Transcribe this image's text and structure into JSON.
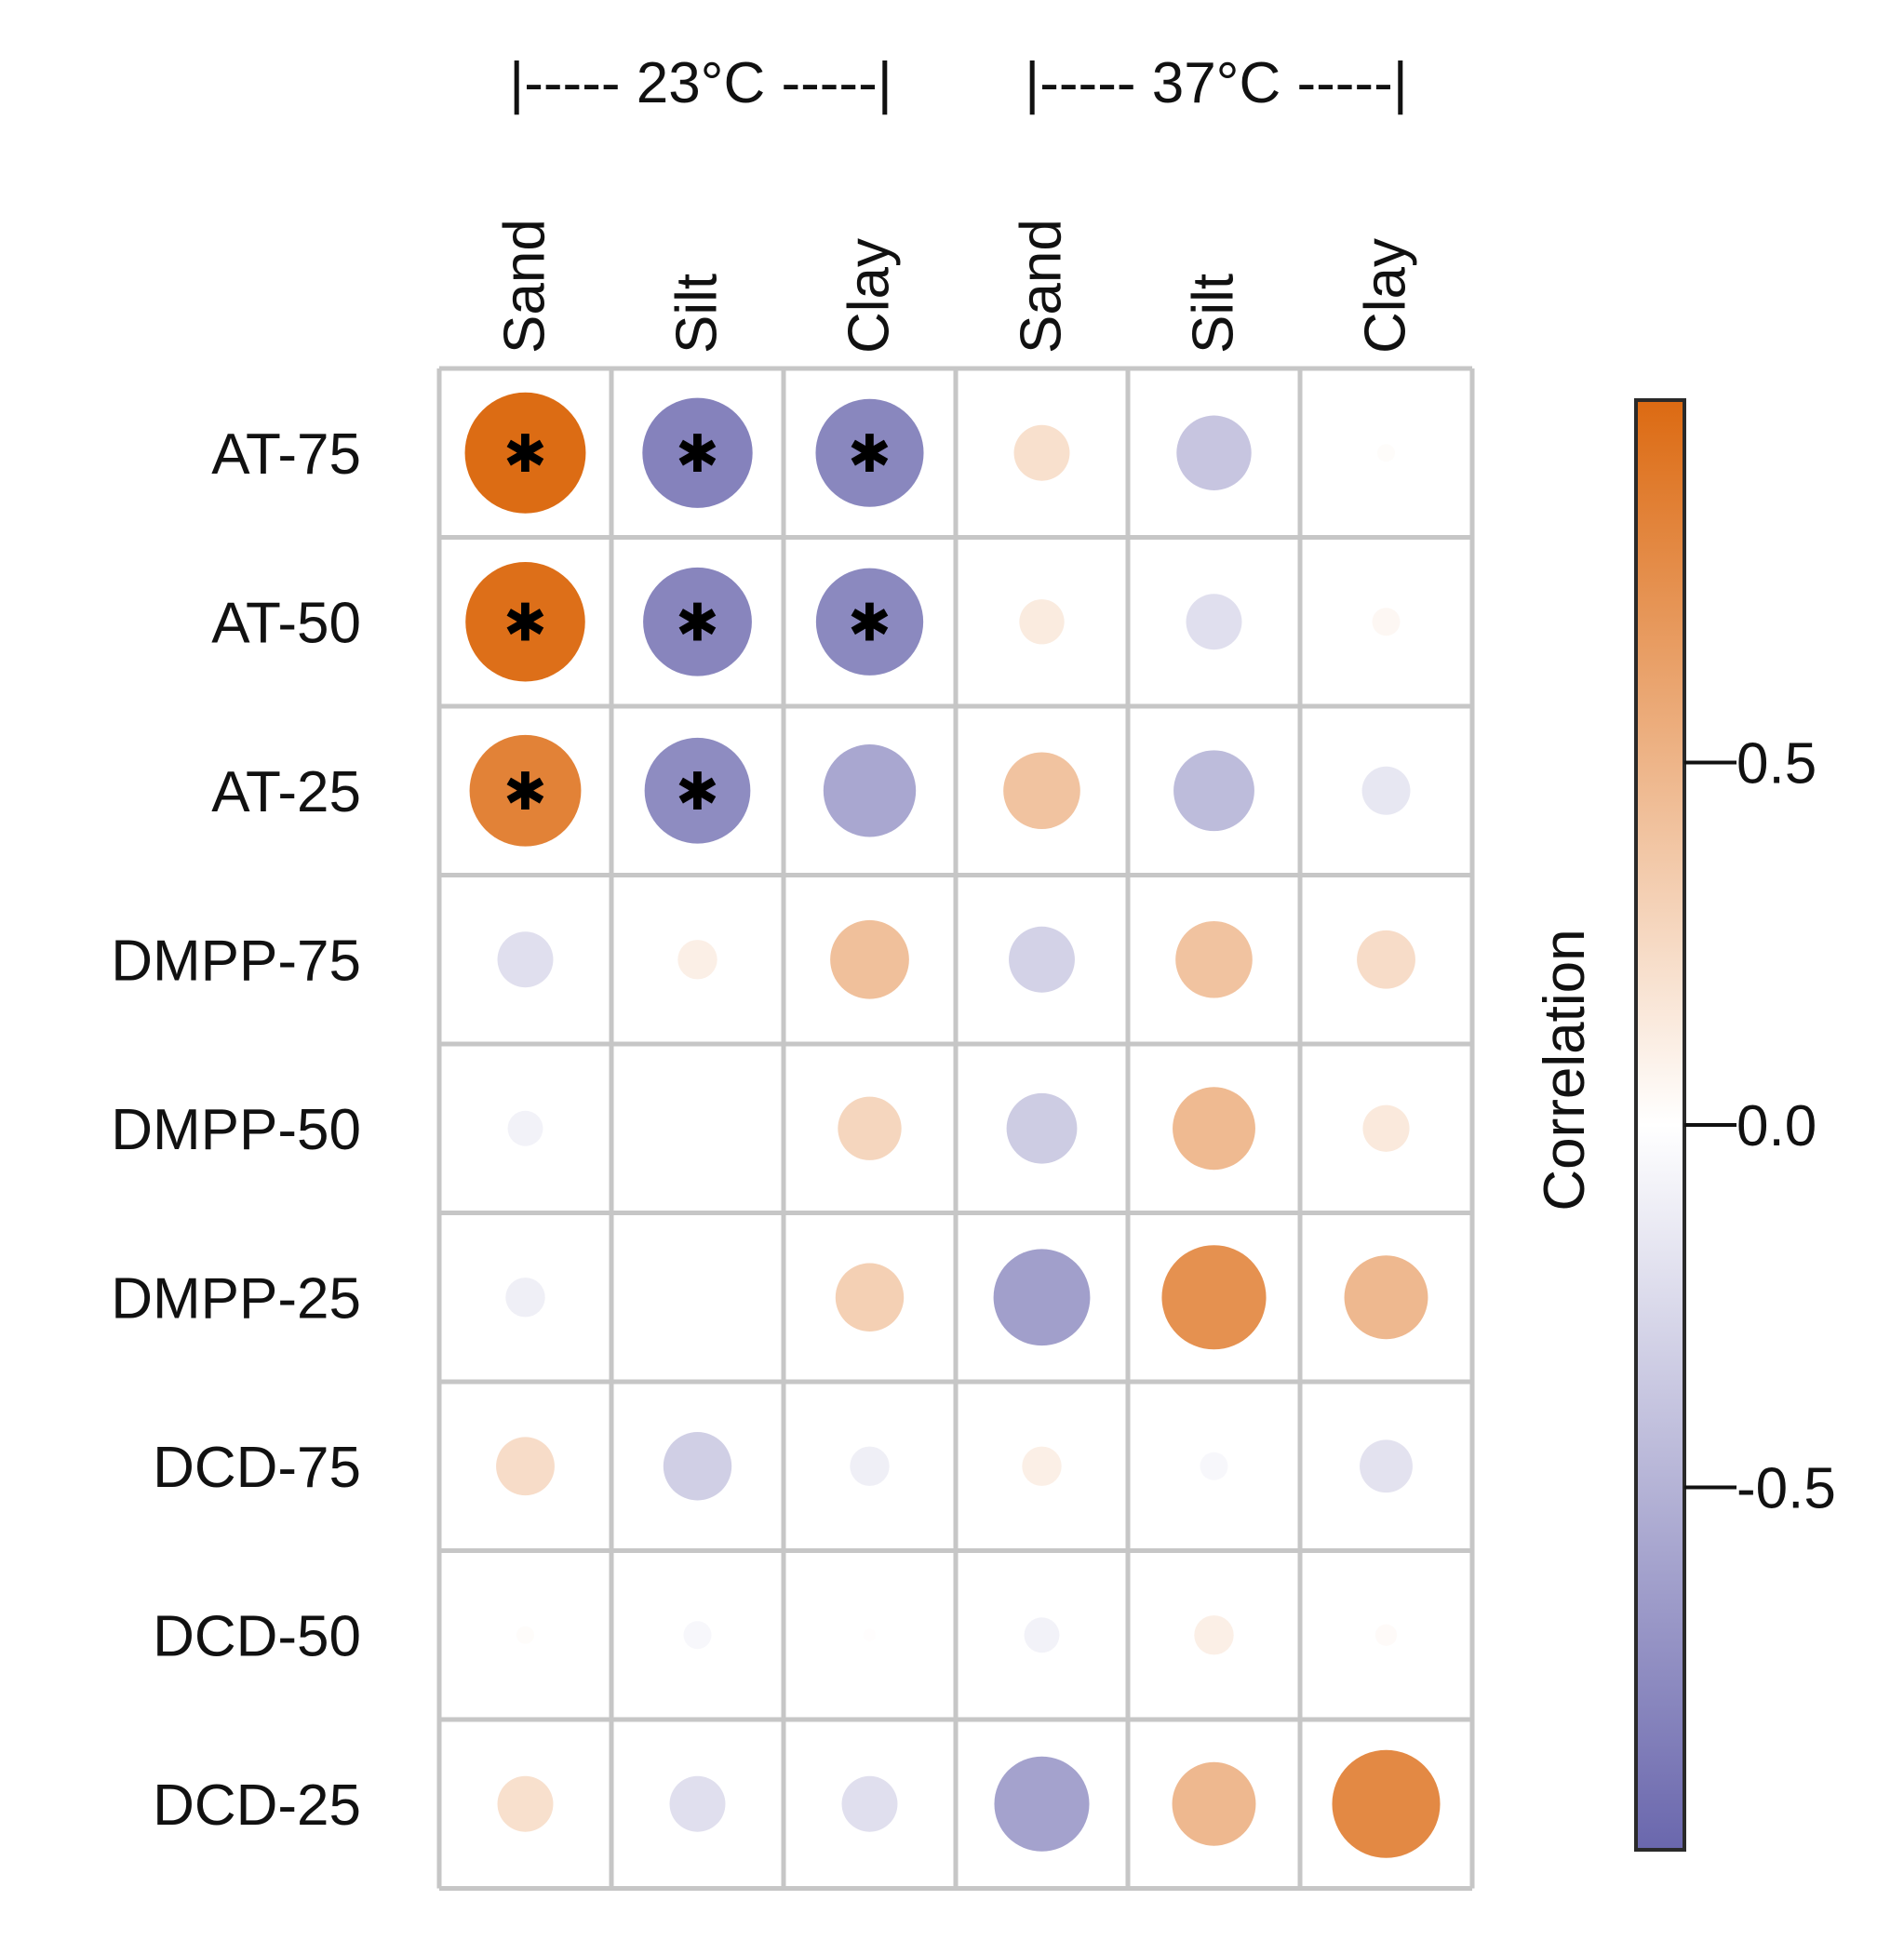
{
  "chart_data": {
    "type": "heatmap",
    "subtype": "correlation-bubble",
    "group_labels": [
      "|----- 23°C -----|",
      "|----- 37°C -----|"
    ],
    "columns": [
      "Sand",
      "Silt",
      "Clay",
      "Sand",
      "Silt",
      "Clay"
    ],
    "rows": [
      "AT-75",
      "AT-50",
      "AT-25",
      "DMPP-75",
      "DMPP-50",
      "DMPP-25",
      "DCD-75",
      "DCD-50",
      "DCD-25"
    ],
    "values": [
      [
        0.94,
        -0.78,
        -0.75,
        0.2,
        -0.36,
        0.02
      ],
      [
        0.92,
        -0.76,
        -0.74,
        0.13,
        -0.2,
        0.05
      ],
      [
        0.8,
        -0.72,
        -0.55,
        0.38,
        -0.42,
        -0.15
      ],
      [
        -0.2,
        0.1,
        0.4,
        -0.28,
        0.38,
        0.22
      ],
      [
        -0.08,
        0.0,
        0.26,
        -0.32,
        0.44,
        0.14
      ],
      [
        -0.1,
        0.0,
        0.3,
        -0.6,
        0.7,
        0.45
      ],
      [
        0.22,
        -0.3,
        -0.1,
        0.1,
        -0.05,
        -0.18
      ],
      [
        0.02,
        -0.05,
        0.01,
        -0.08,
        0.1,
        0.03
      ],
      [
        0.2,
        -0.2,
        -0.2,
        -0.58,
        0.45,
        0.75
      ]
    ],
    "significant": [
      [
        true,
        true,
        true,
        false,
        false,
        false
      ],
      [
        true,
        true,
        true,
        false,
        false,
        false
      ],
      [
        true,
        true,
        false,
        false,
        false,
        false
      ],
      [
        false,
        false,
        false,
        false,
        false,
        false
      ],
      [
        false,
        false,
        false,
        false,
        false,
        false
      ],
      [
        false,
        false,
        false,
        false,
        false,
        false
      ],
      [
        false,
        false,
        false,
        false,
        false,
        false
      ],
      [
        false,
        false,
        false,
        false,
        false,
        false
      ],
      [
        false,
        false,
        false,
        false,
        false,
        false
      ]
    ],
    "significance_marker": "✱",
    "colorbar": {
      "title": "Correlation",
      "range": [
        -1,
        1
      ],
      "ticks": [
        0.5,
        0.0,
        -0.5
      ],
      "tick_labels": [
        "0.5",
        "0.0",
        "-0.5"
      ],
      "colors": {
        "negative": "#6a67ad",
        "zero": "#ffffff",
        "positive": "#dc6a12"
      }
    },
    "legend_position": "right"
  }
}
